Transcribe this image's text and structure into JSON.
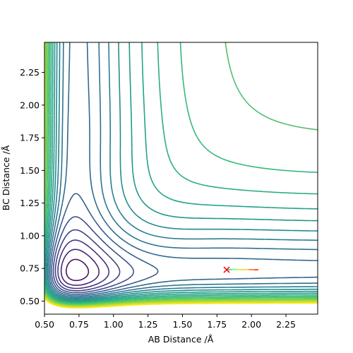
{
  "chart_data": {
    "type": "contour",
    "title": "",
    "xlabel": "AB Distance /Å",
    "ylabel": "BC Distance /Å",
    "xlim": [
      0.5,
      2.48
    ],
    "ylim": [
      0.4,
      2.48
    ],
    "xticks": [
      0.5,
      0.75,
      1.0,
      1.25,
      1.5,
      1.75,
      2.0,
      2.25
    ],
    "xtick_labels": [
      "0.50",
      "0.75",
      "1.00",
      "1.25",
      "1.50",
      "1.75",
      "2.00",
      "2.25"
    ],
    "yticks": [
      0.5,
      0.75,
      1.0,
      1.25,
      1.5,
      1.75,
      2.0,
      2.25
    ],
    "ytick_labels": [
      "0.50",
      "0.75",
      "1.00",
      "1.25",
      "1.50",
      "1.75",
      "2.00",
      "2.25"
    ],
    "grid": false,
    "colormap": "viridis",
    "contour_levels": 22,
    "start_marker": {
      "x": 1.82,
      "y": 0.74,
      "symbol": "x",
      "color": "#ff0000"
    },
    "trajectory": {
      "x": [
        1.82,
        1.86,
        1.9,
        1.94,
        1.98,
        2.02,
        2.05
      ],
      "y": [
        0.74,
        0.742,
        0.742,
        0.741,
        0.741,
        0.74,
        0.74
      ],
      "colors": [
        "#40e0d0",
        "#7fff7f",
        "#c8f060",
        "#ffd050",
        "#ff9040",
        "#ff5030",
        "#d02020"
      ]
    }
  }
}
